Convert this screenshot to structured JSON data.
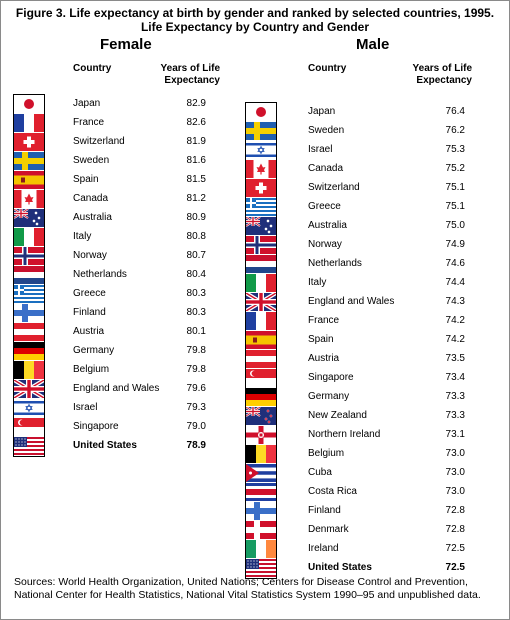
{
  "title": "Figure 3.  Life expectancy at birth by gender and ranked by selected countries, 1995.",
  "subtitle": "Life Expectancy by Country and Gender",
  "female_heading": "Female",
  "male_heading": "Male",
  "col_country": "Country",
  "col_years_line1": "Years of Life",
  "col_years_line2": "Expectancy",
  "sources": "Sources: World Health Organization, United Nations; Centers for Disease Control and Prevention, National Center for Health Statistics, National Vital Statistics System 1990–95 and unpublished data.",
  "chart_data": [
    {
      "type": "table",
      "title": "Female",
      "columns": [
        "Country",
        "Years of Life Expectancy"
      ],
      "rows": [
        {
          "country": "Japan",
          "value": "82.9"
        },
        {
          "country": "France",
          "value": "82.6"
        },
        {
          "country": "Switzerland",
          "value": "81.9"
        },
        {
          "country": "Sweden",
          "value": "81.6"
        },
        {
          "country": "Spain",
          "value": "81.5"
        },
        {
          "country": "Canada",
          "value": "81.2"
        },
        {
          "country": "Australia",
          "value": "80.9"
        },
        {
          "country": "Italy",
          "value": "80.8"
        },
        {
          "country": "Norway",
          "value": "80.7"
        },
        {
          "country": "Netherlands",
          "value": "80.4"
        },
        {
          "country": "Greece",
          "value": "80.3"
        },
        {
          "country": "Finland",
          "value": "80.3"
        },
        {
          "country": "Austria",
          "value": "80.1"
        },
        {
          "country": "Germany",
          "value": "79.8"
        },
        {
          "country": "Belgium",
          "value": "79.8"
        },
        {
          "country": "England and Wales",
          "value": "79.6"
        },
        {
          "country": "Israel",
          "value": "79.3"
        },
        {
          "country": "Singapore",
          "value": "79.0"
        },
        {
          "country": "United States",
          "value": "78.9",
          "highlight": true
        }
      ]
    },
    {
      "type": "table",
      "title": "Male",
      "columns": [
        "Country",
        "Years of Life Expectancy"
      ],
      "rows": [
        {
          "country": "Japan",
          "value": "76.4"
        },
        {
          "country": "Sweden",
          "value": "76.2"
        },
        {
          "country": "Israel",
          "value": "75.3"
        },
        {
          "country": "Canada",
          "value": "75.2"
        },
        {
          "country": "Switzerland",
          "value": "75.1"
        },
        {
          "country": "Greece",
          "value": "75.1"
        },
        {
          "country": "Australia",
          "value": "75.0"
        },
        {
          "country": "Norway",
          "value": "74.9"
        },
        {
          "country": "Netherlands",
          "value": "74.6"
        },
        {
          "country": "Italy",
          "value": "74.4"
        },
        {
          "country": "England and Wales",
          "value": "74.3"
        },
        {
          "country": "France",
          "value": "74.2"
        },
        {
          "country": "Spain",
          "value": "74.2"
        },
        {
          "country": "Austria",
          "value": "73.5"
        },
        {
          "country": "Singapore",
          "value": "73.4"
        },
        {
          "country": "Germany",
          "value": "73.3"
        },
        {
          "country": "New Zealand",
          "value": "73.3"
        },
        {
          "country": "Northern Ireland",
          "value": "73.1"
        },
        {
          "country": "Belgium",
          "value": "73.0"
        },
        {
          "country": "Cuba",
          "value": "73.0"
        },
        {
          "country": "Costa Rica",
          "value": "73.0"
        },
        {
          "country": "Finland",
          "value": "72.8"
        },
        {
          "country": "Denmark",
          "value": "72.8"
        },
        {
          "country": "Ireland",
          "value": "72.5"
        },
        {
          "country": "United States",
          "value": "72.5",
          "highlight": true
        }
      ]
    }
  ]
}
